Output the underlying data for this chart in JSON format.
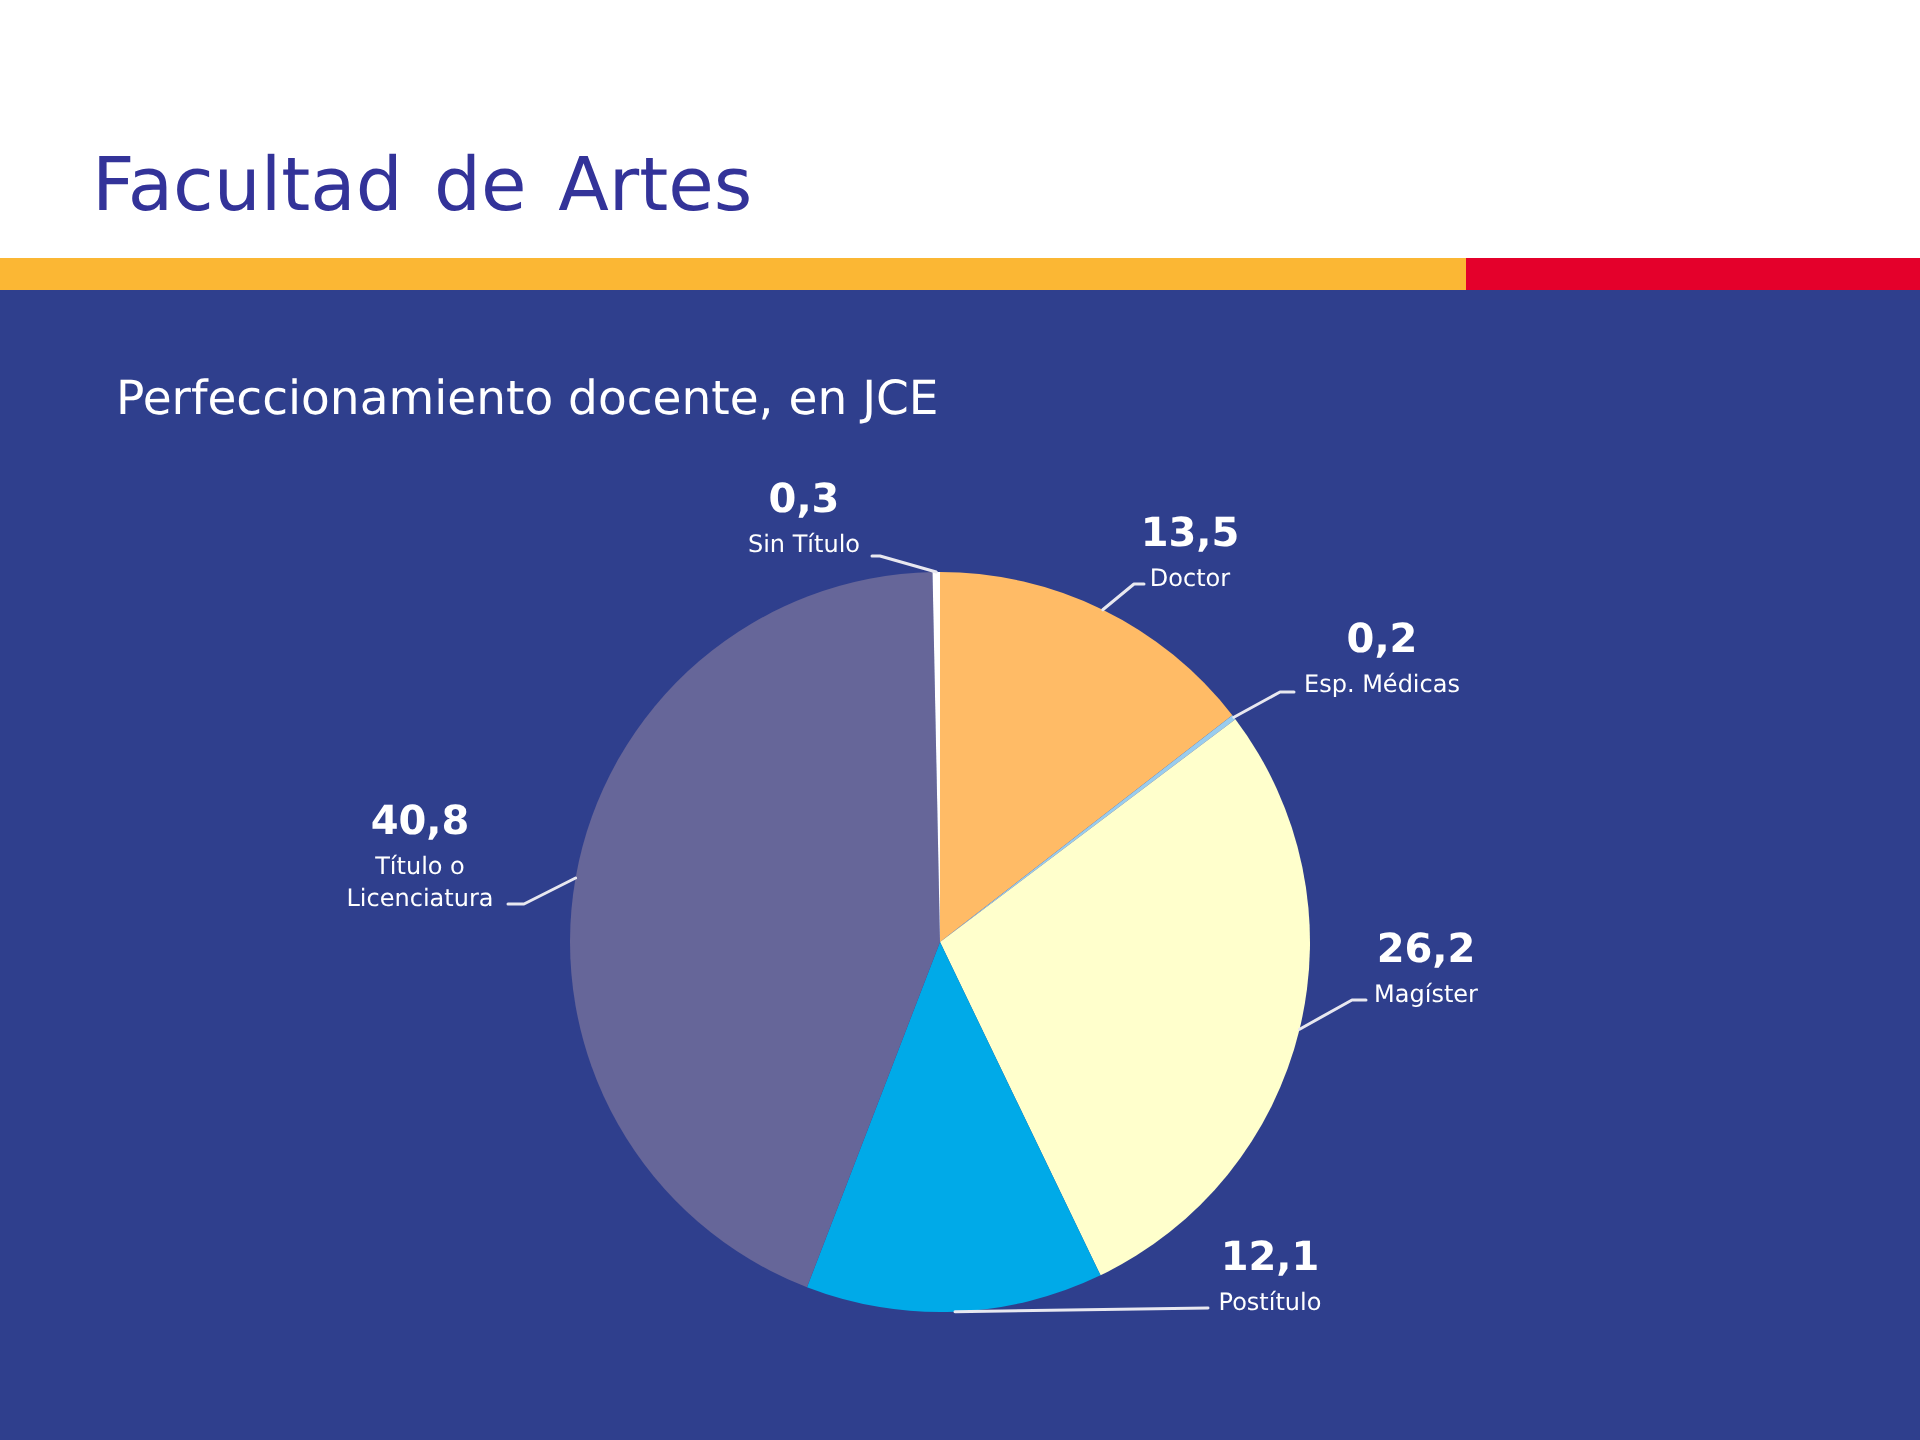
{
  "chart_data": {
    "type": "pie",
    "title": "Facultad de Artes",
    "subtitle": "Perfeccionamiento docente, en JCE",
    "categories": [
      "Doctor",
      "Esp. Médicas",
      "Magíster",
      "Postítulo",
      "Título o Licenciatura",
      "Sin Título"
    ],
    "values": [
      13.5,
      0.2,
      26.2,
      12.1,
      40.8,
      0.3
    ],
    "colors": [
      "#ffbb66",
      "#99ccee",
      "#ffffcc",
      "#00aae8",
      "#666699",
      "#ffffff"
    ],
    "value_labels": [
      "13,5",
      "0,2",
      "26,2",
      "12,1",
      "40,8",
      "0,3"
    ]
  }
}
